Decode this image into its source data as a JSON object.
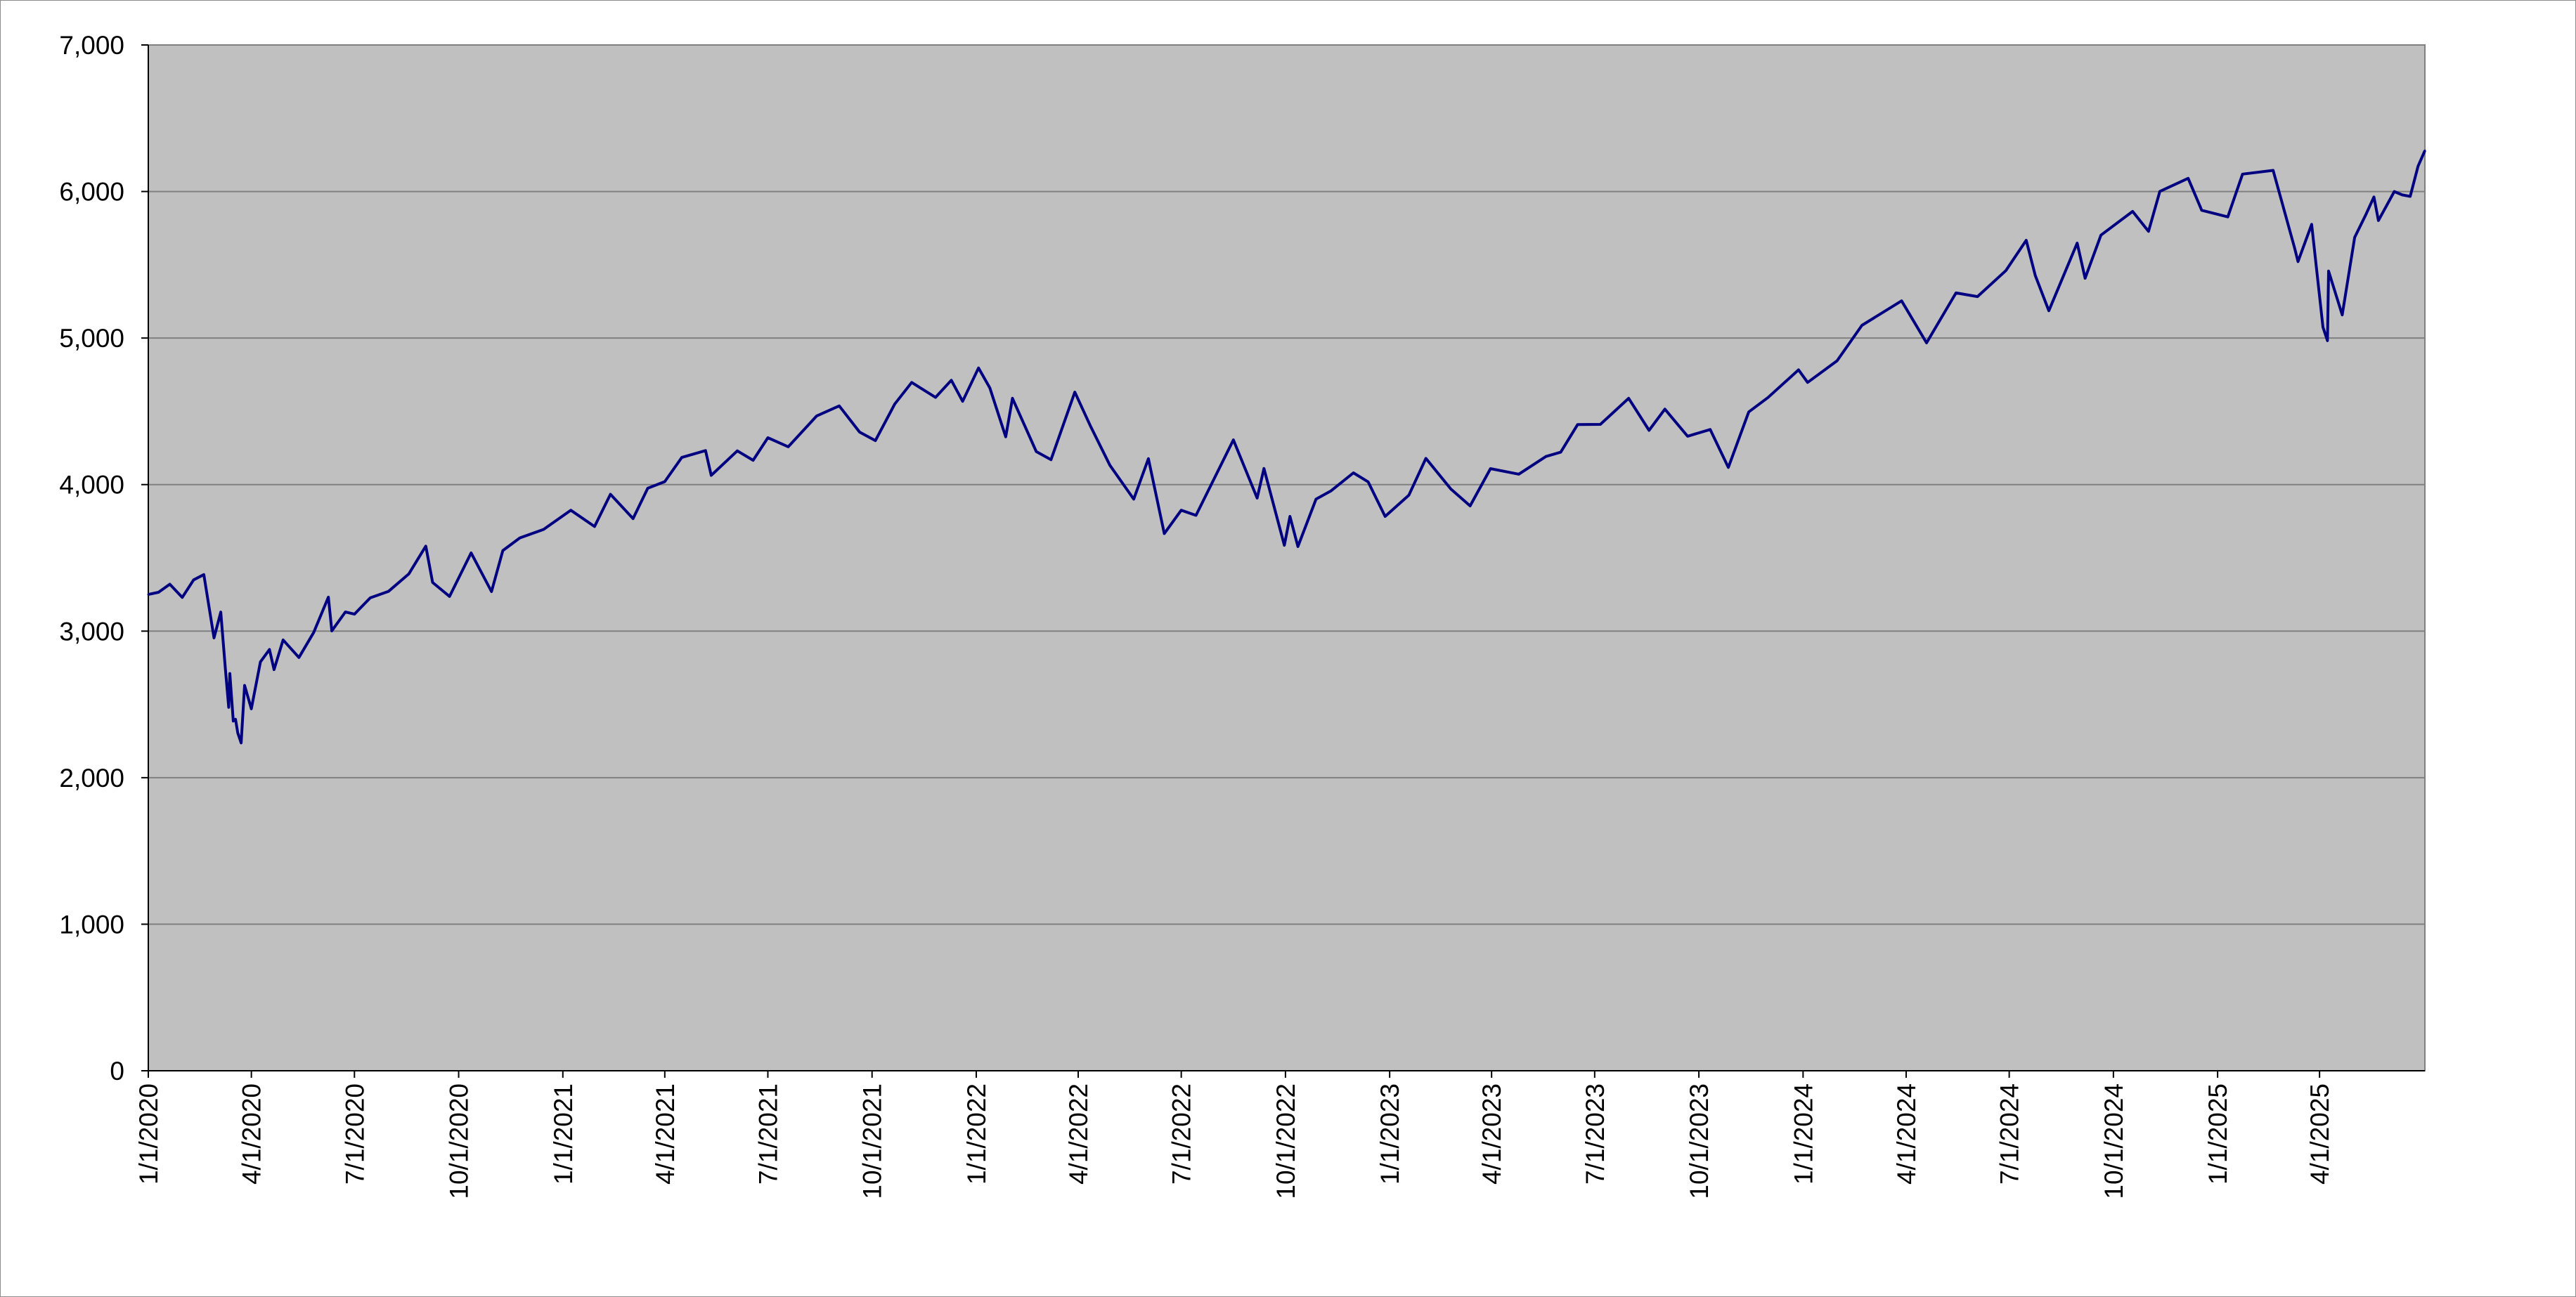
{
  "chart_data": {
    "type": "line",
    "title": "",
    "xlabel": "",
    "ylabel": "",
    "ylim": [
      0,
      7000
    ],
    "y_ticks": [
      0,
      1000,
      2000,
      3000,
      4000,
      5000,
      6000,
      7000
    ],
    "y_tick_labels": [
      "0",
      "1,000",
      "2,000",
      "3,000",
      "4,000",
      "5,000",
      "6,000",
      "7,000"
    ],
    "x_range": [
      "2020-01-01",
      "2025-07-03"
    ],
    "x_ticks": [
      "2020-01-01",
      "2020-04-01",
      "2020-07-01",
      "2020-10-01",
      "2021-01-01",
      "2021-04-01",
      "2021-07-01",
      "2021-10-01",
      "2022-01-01",
      "2022-04-01",
      "2022-07-01",
      "2022-10-01",
      "2023-01-01",
      "2023-04-01",
      "2023-07-01",
      "2023-10-01",
      "2024-01-01",
      "2024-04-01",
      "2024-07-01",
      "2024-10-01",
      "2025-01-01",
      "2025-04-01"
    ],
    "x_tick_labels": [
      "1/1/2020",
      "4/1/2020",
      "7/1/2020",
      "10/1/2020",
      "1/1/2021",
      "4/1/2021",
      "7/1/2021",
      "10/1/2021",
      "1/1/2022",
      "4/1/2022",
      "7/1/2022",
      "10/1/2022",
      "1/1/2023",
      "4/1/2023",
      "7/1/2023",
      "10/1/2023",
      "1/1/2024",
      "4/1/2024",
      "7/1/2024",
      "10/1/2024",
      "1/1/2025",
      "4/1/2025"
    ],
    "grid": true,
    "legend": "none",
    "colors": {
      "plot_bg": "#c0c0c0",
      "line": "#000080",
      "grid": "#808080",
      "outer_bg": "#ffffff"
    },
    "series": [
      {
        "points": [
          [
            "2020-01-01",
            3250
          ],
          [
            "2020-01-10",
            3265
          ],
          [
            "2020-01-20",
            3320
          ],
          [
            "2020-01-31",
            3230
          ],
          [
            "2020-02-10",
            3350
          ],
          [
            "2020-02-19",
            3386
          ],
          [
            "2020-02-28",
            2954
          ],
          [
            "2020-03-05",
            3130
          ],
          [
            "2020-03-09",
            2746
          ],
          [
            "2020-03-12",
            2480
          ],
          [
            "2020-03-13",
            2711
          ],
          [
            "2020-03-16",
            2386
          ],
          [
            "2020-03-18",
            2398
          ],
          [
            "2020-03-20",
            2305
          ],
          [
            "2020-03-23",
            2237
          ],
          [
            "2020-03-26",
            2630
          ],
          [
            "2020-04-01",
            2470
          ],
          [
            "2020-04-09",
            2790
          ],
          [
            "2020-04-17",
            2875
          ],
          [
            "2020-04-21",
            2737
          ],
          [
            "2020-04-29",
            2940
          ],
          [
            "2020-05-13",
            2820
          ],
          [
            "2020-05-26",
            2991
          ],
          [
            "2020-06-08",
            3232
          ],
          [
            "2020-06-11",
            3002
          ],
          [
            "2020-06-23",
            3131
          ],
          [
            "2020-07-01",
            3116
          ],
          [
            "2020-07-15",
            3227
          ],
          [
            "2020-07-31",
            3271
          ],
          [
            "2020-08-18",
            3390
          ],
          [
            "2020-09-02",
            3580
          ],
          [
            "2020-09-08",
            3332
          ],
          [
            "2020-09-23",
            3237
          ],
          [
            "2020-10-12",
            3534
          ],
          [
            "2020-10-30",
            3270
          ],
          [
            "2020-11-09",
            3550
          ],
          [
            "2020-11-24",
            3636
          ],
          [
            "2020-12-15",
            3694
          ],
          [
            "2021-01-08",
            3825
          ],
          [
            "2021-01-29",
            3714
          ],
          [
            "2021-02-12",
            3934
          ],
          [
            "2021-03-04",
            3768
          ],
          [
            "2021-03-17",
            3975
          ],
          [
            "2021-04-01",
            4020
          ],
          [
            "2021-04-16",
            4185
          ],
          [
            "2021-05-07",
            4232
          ],
          [
            "2021-05-12",
            4063
          ],
          [
            "2021-06-04",
            4230
          ],
          [
            "2021-06-18",
            4166
          ],
          [
            "2021-07-01",
            4320
          ],
          [
            "2021-07-19",
            4258
          ],
          [
            "2021-08-13",
            4468
          ],
          [
            "2021-09-02",
            4537
          ],
          [
            "2021-09-20",
            4358
          ],
          [
            "2021-10-04",
            4300
          ],
          [
            "2021-10-21",
            4549
          ],
          [
            "2021-11-05",
            4697
          ],
          [
            "2021-11-26",
            4595
          ],
          [
            "2021-12-10",
            4712
          ],
          [
            "2021-12-20",
            4568
          ],
          [
            "2022-01-03",
            4796
          ],
          [
            "2022-01-13",
            4660
          ],
          [
            "2022-01-27",
            4326
          ],
          [
            "2022-02-02",
            4589
          ],
          [
            "2022-02-23",
            4225
          ],
          [
            "2022-03-08",
            4170
          ],
          [
            "2022-03-29",
            4631
          ],
          [
            "2022-04-12",
            4397
          ],
          [
            "2022-04-29",
            4132
          ],
          [
            "2022-05-20",
            3901
          ],
          [
            "2022-06-02",
            4177
          ],
          [
            "2022-06-16",
            3666
          ],
          [
            "2022-07-01",
            3825
          ],
          [
            "2022-07-14",
            3790
          ],
          [
            "2022-08-16",
            4305
          ],
          [
            "2022-09-06",
            3908
          ],
          [
            "2022-09-12",
            4110
          ],
          [
            "2022-09-30",
            3586
          ],
          [
            "2022-10-05",
            3783
          ],
          [
            "2022-10-12",
            3577
          ],
          [
            "2022-10-28",
            3901
          ],
          [
            "2022-11-10",
            3956
          ],
          [
            "2022-11-30",
            4080
          ],
          [
            "2022-12-13",
            4019
          ],
          [
            "2022-12-28",
            3783
          ],
          [
            "2023-01-18",
            3928
          ],
          [
            "2023-02-02",
            4179
          ],
          [
            "2023-02-24",
            3970
          ],
          [
            "2023-03-13",
            3855
          ],
          [
            "2023-03-31",
            4109
          ],
          [
            "2023-04-25",
            4071
          ],
          [
            "2023-05-19",
            4192
          ],
          [
            "2023-06-01",
            4221
          ],
          [
            "2023-06-16",
            4410
          ],
          [
            "2023-07-06",
            4411
          ],
          [
            "2023-07-31",
            4589
          ],
          [
            "2023-08-18",
            4370
          ],
          [
            "2023-09-01",
            4515
          ],
          [
            "2023-09-21",
            4330
          ],
          [
            "2023-10-11",
            4376
          ],
          [
            "2023-10-27",
            4117
          ],
          [
            "2023-11-14",
            4496
          ],
          [
            "2023-12-01",
            4594
          ],
          [
            "2023-12-28",
            4783
          ],
          [
            "2024-01-05",
            4697
          ],
          [
            "2024-01-31",
            4845
          ],
          [
            "2024-02-22",
            5087
          ],
          [
            "2024-03-28",
            5254
          ],
          [
            "2024-04-19",
            4967
          ],
          [
            "2024-05-15",
            5308
          ],
          [
            "2024-06-03",
            5283
          ],
          [
            "2024-06-28",
            5460
          ],
          [
            "2024-07-16",
            5667
          ],
          [
            "2024-07-24",
            5427
          ],
          [
            "2024-08-05",
            5186
          ],
          [
            "2024-08-30",
            5648
          ],
          [
            "2024-09-06",
            5408
          ],
          [
            "2024-09-20",
            5702
          ],
          [
            "2024-10-18",
            5864
          ],
          [
            "2024-11-01",
            5728
          ],
          [
            "2024-11-11",
            6001
          ],
          [
            "2024-12-06",
            6090
          ],
          [
            "2024-12-18",
            5872
          ],
          [
            "2025-01-10",
            5827
          ],
          [
            "2025-01-23",
            6119
          ],
          [
            "2025-02-19",
            6144
          ],
          [
            "2025-03-10",
            5614
          ],
          [
            "2025-03-13",
            5522
          ],
          [
            "2025-03-25",
            5776
          ],
          [
            "2025-04-04",
            5074
          ],
          [
            "2025-04-08",
            4982
          ],
          [
            "2025-04-09",
            5457
          ],
          [
            "2025-04-21",
            5158
          ],
          [
            "2025-05-02",
            5687
          ],
          [
            "2025-05-12",
            5844
          ],
          [
            "2025-05-19",
            5963
          ],
          [
            "2025-05-23",
            5802
          ],
          [
            "2025-06-06",
            6000
          ],
          [
            "2025-06-13",
            5977
          ],
          [
            "2025-06-20",
            5967
          ],
          [
            "2025-06-27",
            6173
          ],
          [
            "2025-07-03",
            6279
          ]
        ]
      }
    ]
  }
}
